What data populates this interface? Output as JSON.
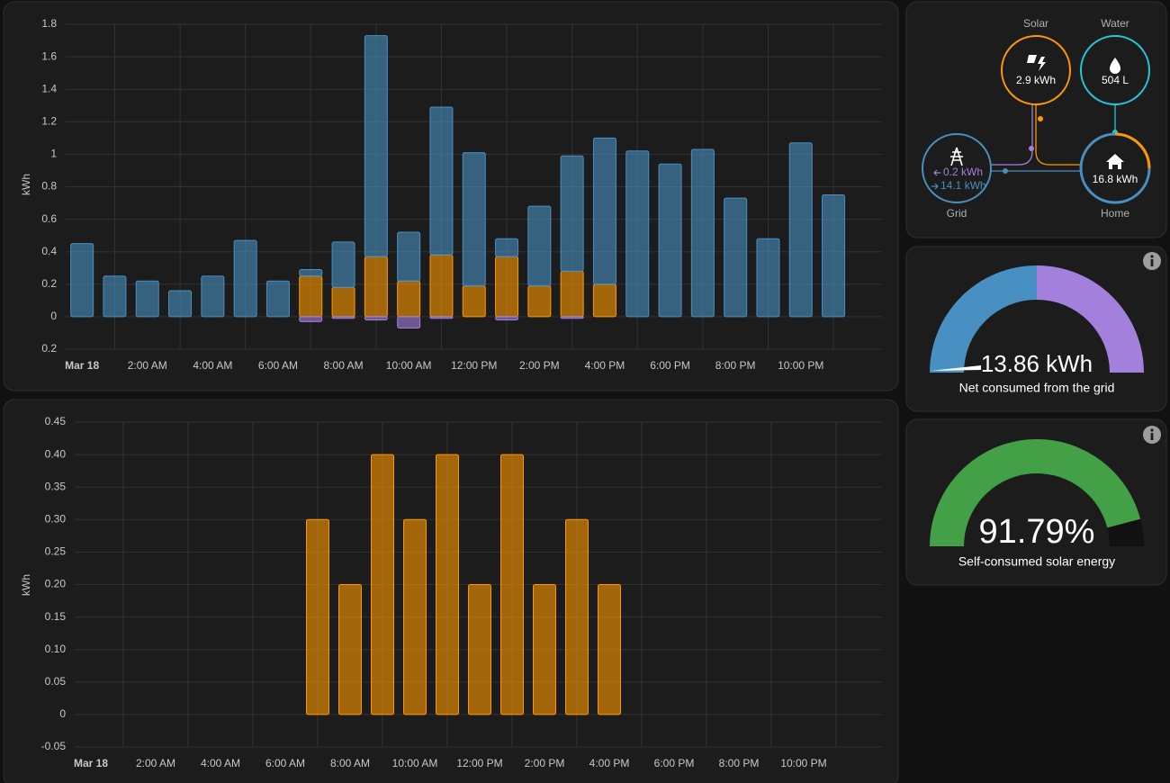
{
  "chart_data": [
    {
      "type": "bar",
      "stacked": true,
      "y_label": "kWh",
      "categories": [
        "Mar 18",
        null,
        "2:00 AM",
        null,
        "4:00 AM",
        null,
        "6:00 AM",
        null,
        "8:00 AM",
        null,
        "10:00 AM",
        null,
        "12:00 PM",
        null,
        "2:00 PM",
        null,
        "4:00 PM",
        null,
        "6:00 PM",
        null,
        "8:00 PM",
        null,
        "10:00 PM",
        null
      ],
      "series": [
        {
          "color": "#ff9800",
          "values": [
            0,
            0,
            0,
            0,
            0,
            0,
            0,
            0.25,
            0.18,
            0.37,
            0.22,
            0.38,
            0.19,
            0.37,
            0.19,
            0.28,
            0.2,
            0,
            0,
            0,
            0,
            0,
            0,
            0
          ]
        },
        {
          "color": "#488fc2",
          "values": [
            0.45,
            0.25,
            0.22,
            0.16,
            0.25,
            0.47,
            0.22,
            0.04,
            0.28,
            1.36,
            0.3,
            0.91,
            0.82,
            0.11,
            0.49,
            0.71,
            0.9,
            1.02,
            0.94,
            1.03,
            0.73,
            0.48,
            1.07,
            0.75
          ]
        },
        {
          "color": "#a280db",
          "values": [
            0,
            0,
            0,
            0,
            0,
            0,
            0,
            -0.03,
            -0.01,
            -0.02,
            -0.07,
            -0.01,
            0,
            -0.02,
            0,
            -0.01,
            0,
            0,
            0,
            0,
            0,
            0,
            0,
            0
          ]
        }
      ],
      "ylim": [
        -0.2,
        1.8
      ],
      "yticks": [
        {
          "value": -0.2,
          "label": "0.2"
        },
        0,
        0.2,
        0.4,
        0.6,
        0.8,
        1,
        1.2,
        1.4,
        1.6,
        1.8
      ],
      "grid": true
    },
    {
      "type": "bar",
      "y_label": "kWh",
      "categories": [
        "Mar 18",
        null,
        "2:00 AM",
        null,
        "4:00 AM",
        null,
        "6:00 AM",
        null,
        "8:00 AM",
        null,
        "10:00 AM",
        null,
        "12:00 PM",
        null,
        "2:00 PM",
        null,
        "4:00 PM",
        null,
        "6:00 PM",
        null,
        "8:00 PM",
        null,
        "10:00 PM",
        null
      ],
      "values": [
        0,
        0,
        0,
        0,
        0,
        0,
        0,
        0.3,
        0.2,
        0.4,
        0.3,
        0.4,
        0.2,
        0.4,
        0.2,
        0.3,
        0.2,
        0,
        0,
        0,
        0,
        0,
        0,
        0
      ],
      "color": "#ff9800",
      "ylim": [
        -0.05,
        0.45
      ],
      "yticks": [
        -0.05,
        0,
        0.05,
        {
          "value": 0.1,
          "label": "0.10"
        },
        0.15,
        {
          "value": 0.2,
          "label": "0.20"
        },
        0.25,
        {
          "value": 0.3,
          "label": "0.30"
        },
        0.35,
        {
          "value": 0.4,
          "label": "0.40"
        },
        0.45
      ],
      "grid": true
    }
  ],
  "energy_distribution": {
    "solar": {
      "label": "Solar",
      "value": "2.9 kWh"
    },
    "water": {
      "label": "Water",
      "value": "504 L"
    },
    "grid": {
      "label": "Grid",
      "returned": "0.2 kWh",
      "consumed": "14.1 kWh"
    },
    "home": {
      "label": "Home",
      "value": "16.8 kWh"
    }
  },
  "gauges": [
    {
      "value_label": "13.86 kWh",
      "name": "Net consumed from the grid"
    },
    {
      "value": 91.79,
      "value_label": "91.79%",
      "name": "Self-consumed solar energy"
    }
  ]
}
